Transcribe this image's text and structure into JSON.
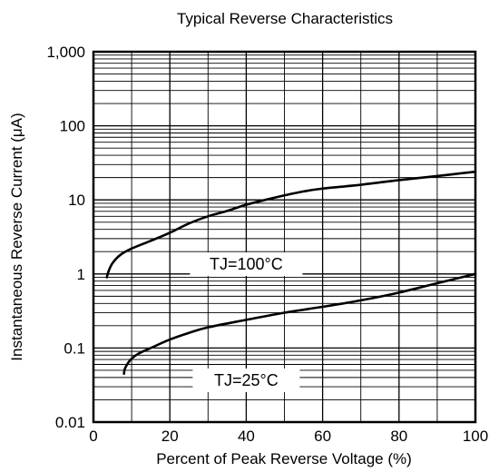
{
  "chart_data": {
    "type": "line",
    "title": "Typical Reverse Characteristics",
    "xlabel": "Percent of Peak Reverse Voltage (%)",
    "ylabel": "Instantaneous Reverse Current (μA)",
    "xlim": [
      0,
      100
    ],
    "ylim": [
      0.01,
      1000
    ],
    "yscale": "log",
    "grid": true,
    "x_ticks": [
      0,
      20,
      40,
      60,
      80,
      100
    ],
    "x_tick_labels": [
      "0",
      "20",
      "40",
      "60",
      "80",
      "100"
    ],
    "y_ticks": [
      0.01,
      0.1,
      1,
      10,
      100,
      1000
    ],
    "y_tick_labels": [
      "0.01",
      "0.1",
      "1",
      "10",
      "100",
      "1,000"
    ],
    "series": [
      {
        "name": "TJ=100°C",
        "x": [
          3.5,
          4,
          5,
          7,
          10,
          15,
          20,
          25,
          30,
          35,
          40,
          45,
          50,
          55,
          60,
          70,
          80,
          90,
          100
        ],
        "y": [
          0.9,
          1.1,
          1.4,
          1.8,
          2.2,
          2.8,
          3.6,
          4.8,
          6.0,
          7.1,
          8.6,
          10.0,
          11.5,
          13.0,
          14.2,
          16.0,
          18.5,
          21.0,
          24.0
        ]
      },
      {
        "name": "TJ=25°C",
        "x": [
          8,
          8.2,
          9,
          10,
          12,
          15,
          20,
          25,
          30,
          40,
          50,
          60,
          70,
          80,
          90,
          100
        ],
        "y": [
          0.045,
          0.052,
          0.062,
          0.072,
          0.085,
          0.1,
          0.13,
          0.16,
          0.19,
          0.24,
          0.3,
          0.36,
          0.44,
          0.56,
          0.75,
          1.0
        ]
      }
    ],
    "annotations": [
      "TJ=100°C",
      "TJ=25°C"
    ]
  }
}
